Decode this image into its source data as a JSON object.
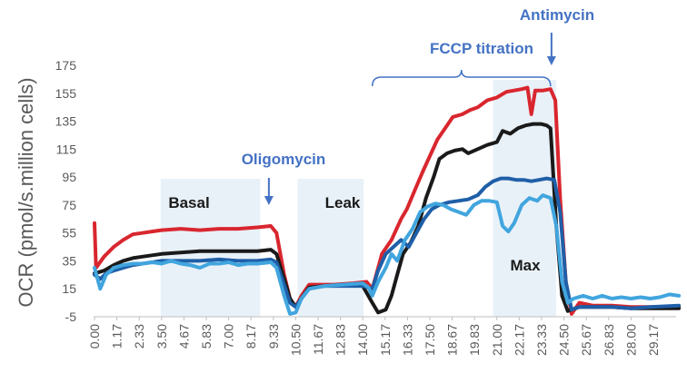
{
  "chart_data": {
    "type": "line",
    "title": "",
    "ylabel": "OCR (pmol/s.million cells)",
    "xlabel": "",
    "ylim": [
      -5,
      175
    ],
    "yticks": [
      -5,
      15,
      35,
      55,
      75,
      95,
      115,
      135,
      155,
      175
    ],
    "xlim": [
      0,
      30.5
    ],
    "xticks": [
      "0.00",
      "1.17",
      "2.33",
      "3.50",
      "4.67",
      "5.83",
      "7.00",
      "8.17",
      "9.33",
      "10.50",
      "11.67",
      "12.83",
      "14.00",
      "15.17",
      "16.33",
      "17.50",
      "18.67",
      "19.83",
      "21.00",
      "22.17",
      "23.33",
      "24.50",
      "25.67",
      "26.83",
      "28.00",
      "29.17"
    ],
    "grid": false,
    "legend": "none",
    "shaded_regions": [
      {
        "label": "Basal",
        "x0": 3.45,
        "x1": 8.65
      },
      {
        "label": "Leak",
        "x0": 10.6,
        "x1": 14.05
      },
      {
        "label": "Max",
        "x0": 20.8,
        "x1": 24.1
      }
    ],
    "annotations": [
      {
        "text": "Oligomycin",
        "x": 9.1,
        "arrow": true
      },
      {
        "text": "FCCP titration",
        "x0": 14.5,
        "x1": 23.8,
        "bracket": true
      },
      {
        "text": "Antimycin",
        "x": 23.85,
        "arrow": true
      }
    ],
    "series": [
      {
        "color": "#d9262e",
        "points": [
          [
            0,
            62
          ],
          [
            0.08,
            30
          ],
          [
            0.5,
            38
          ],
          [
            1,
            45
          ],
          [
            1.5,
            50
          ],
          [
            2,
            54
          ],
          [
            2.5,
            55
          ],
          [
            3,
            56
          ],
          [
            3.5,
            57
          ],
          [
            4.5,
            58
          ],
          [
            5.5,
            57
          ],
          [
            6.5,
            58
          ],
          [
            7.5,
            58
          ],
          [
            8.5,
            59
          ],
          [
            9.2,
            60
          ],
          [
            9.5,
            55
          ],
          [
            9.9,
            25
          ],
          [
            10.2,
            8
          ],
          [
            10.5,
            2
          ],
          [
            10.8,
            10
          ],
          [
            11.2,
            18
          ],
          [
            11.67,
            18
          ],
          [
            12.5,
            18
          ],
          [
            13.5,
            19
          ],
          [
            14.2,
            20
          ],
          [
            14.5,
            15
          ],
          [
            14.7,
            25
          ],
          [
            15,
            40
          ],
          [
            15.5,
            50
          ],
          [
            16,
            65
          ],
          [
            16.3,
            72
          ],
          [
            16.7,
            85
          ],
          [
            17.1,
            98
          ],
          [
            17.5,
            110
          ],
          [
            17.9,
            122
          ],
          [
            18.3,
            130
          ],
          [
            18.7,
            138
          ],
          [
            19.2,
            140
          ],
          [
            19.6,
            143
          ],
          [
            20,
            145
          ],
          [
            20.5,
            150
          ],
          [
            21,
            152
          ],
          [
            21.5,
            156
          ],
          [
            21.9,
            157
          ],
          [
            22.3,
            158
          ],
          [
            22.6,
            159
          ],
          [
            22.8,
            140
          ],
          [
            23,
            157
          ],
          [
            23.4,
            157
          ],
          [
            23.8,
            158
          ],
          [
            24.05,
            150
          ],
          [
            24.3,
            80
          ],
          [
            24.6,
            20
          ],
          [
            24.9,
            -3
          ],
          [
            25.3,
            5
          ],
          [
            26,
            3
          ],
          [
            27,
            3
          ],
          [
            28,
            2
          ],
          [
            29,
            2
          ],
          [
            29.5,
            2
          ],
          [
            30.5,
            2
          ]
        ]
      },
      {
        "color": "#1a1a1a",
        "points": [
          [
            0,
            26
          ],
          [
            0.5,
            28
          ],
          [
            1,
            32
          ],
          [
            1.5,
            35
          ],
          [
            2,
            37
          ],
          [
            2.5,
            38
          ],
          [
            3,
            39
          ],
          [
            3.5,
            40
          ],
          [
            4.5,
            41
          ],
          [
            5.5,
            42
          ],
          [
            6.5,
            42
          ],
          [
            7.5,
            42
          ],
          [
            8.5,
            42
          ],
          [
            9.2,
            43
          ],
          [
            9.5,
            40
          ],
          [
            9.9,
            22
          ],
          [
            10.2,
            8
          ],
          [
            10.5,
            2
          ],
          [
            10.8,
            8
          ],
          [
            11.2,
            16
          ],
          [
            12,
            17
          ],
          [
            13,
            18
          ],
          [
            14,
            17
          ],
          [
            14.5,
            5
          ],
          [
            14.8,
            -2
          ],
          [
            15.2,
            0
          ],
          [
            15.5,
            10
          ],
          [
            15.8,
            25
          ],
          [
            16.1,
            40
          ],
          [
            16.5,
            48
          ],
          [
            16.9,
            60
          ],
          [
            17.3,
            80
          ],
          [
            17.7,
            95
          ],
          [
            18,
            108
          ],
          [
            18.4,
            112
          ],
          [
            18.8,
            114
          ],
          [
            19.2,
            115
          ],
          [
            19.5,
            112
          ],
          [
            20,
            115
          ],
          [
            20.5,
            118
          ],
          [
            21,
            120
          ],
          [
            21.3,
            128
          ],
          [
            21.7,
            126
          ],
          [
            22.1,
            130
          ],
          [
            22.5,
            132
          ],
          [
            22.9,
            133
          ],
          [
            23.3,
            133
          ],
          [
            23.6,
            132
          ],
          [
            23.8,
            130
          ],
          [
            24.1,
            60
          ],
          [
            24.4,
            10
          ],
          [
            24.7,
            -1
          ],
          [
            25.3,
            2
          ],
          [
            26,
            2
          ],
          [
            27,
            2
          ],
          [
            28,
            1
          ],
          [
            29,
            1
          ],
          [
            30.5,
            1
          ]
        ]
      },
      {
        "color": "#1f5fa8",
        "points": [
          [
            0,
            25
          ],
          [
            0.3,
            22
          ],
          [
            0.6,
            26
          ],
          [
            1,
            28
          ],
          [
            1.5,
            30
          ],
          [
            2,
            32
          ],
          [
            2.5,
            33
          ],
          [
            3,
            34
          ],
          [
            3.5,
            35
          ],
          [
            4.5,
            35
          ],
          [
            5.5,
            35
          ],
          [
            6.5,
            36
          ],
          [
            7.5,
            35
          ],
          [
            8.5,
            35
          ],
          [
            9.2,
            36
          ],
          [
            9.5,
            34
          ],
          [
            9.9,
            18
          ],
          [
            10.2,
            5
          ],
          [
            10.5,
            2
          ],
          [
            10.8,
            8
          ],
          [
            11.2,
            15
          ],
          [
            12,
            17
          ],
          [
            13,
            17
          ],
          [
            14,
            17
          ],
          [
            14.5,
            15
          ],
          [
            14.8,
            28
          ],
          [
            15.2,
            40
          ],
          [
            15.6,
            45
          ],
          [
            16,
            50
          ],
          [
            16.4,
            45
          ],
          [
            16.8,
            55
          ],
          [
            17.2,
            65
          ],
          [
            17.6,
            72
          ],
          [
            18,
            75
          ],
          [
            18.5,
            77
          ],
          [
            19,
            78
          ],
          [
            19.5,
            79
          ],
          [
            20,
            82
          ],
          [
            20.4,
            88
          ],
          [
            20.8,
            92
          ],
          [
            21.2,
            94
          ],
          [
            21.6,
            94
          ],
          [
            22,
            93
          ],
          [
            22.4,
            93
          ],
          [
            22.8,
            92
          ],
          [
            23.2,
            93
          ],
          [
            23.6,
            94
          ],
          [
            24,
            93
          ],
          [
            24.3,
            70
          ],
          [
            24.6,
            20
          ],
          [
            24.9,
            0
          ],
          [
            25.3,
            2
          ],
          [
            26,
            2
          ],
          [
            27,
            2
          ],
          [
            28,
            1
          ],
          [
            29,
            2
          ],
          [
            30.5,
            3
          ]
        ]
      },
      {
        "color": "#41a5de",
        "points": [
          [
            0,
            30
          ],
          [
            0.3,
            15
          ],
          [
            0.6,
            25
          ],
          [
            1,
            30
          ],
          [
            1.5,
            32
          ],
          [
            2,
            33
          ],
          [
            2.5,
            33
          ],
          [
            3,
            34
          ],
          [
            3.5,
            33
          ],
          [
            4,
            35
          ],
          [
            4.5,
            33
          ],
          [
            5,
            32
          ],
          [
            5.5,
            30
          ],
          [
            6,
            33
          ],
          [
            6.5,
            33
          ],
          [
            7,
            34
          ],
          [
            7.5,
            32
          ],
          [
            8,
            33
          ],
          [
            8.5,
            33
          ],
          [
            9.2,
            34
          ],
          [
            9.5,
            30
          ],
          [
            9.9,
            10
          ],
          [
            10.2,
            -3
          ],
          [
            10.5,
            -2
          ],
          [
            10.8,
            8
          ],
          [
            11.2,
            15
          ],
          [
            12,
            17
          ],
          [
            13,
            18
          ],
          [
            14,
            19
          ],
          [
            14.3,
            16
          ],
          [
            14.5,
            10
          ],
          [
            14.8,
            20
          ],
          [
            15.2,
            30
          ],
          [
            15.5,
            40
          ],
          [
            15.8,
            35
          ],
          [
            16.2,
            50
          ],
          [
            16.6,
            58
          ],
          [
            17,
            70
          ],
          [
            17.4,
            74
          ],
          [
            17.8,
            76
          ],
          [
            18.2,
            75
          ],
          [
            18.6,
            72
          ],
          [
            19,
            70
          ],
          [
            19.4,
            68
          ],
          [
            19.8,
            75
          ],
          [
            20.2,
            78
          ],
          [
            20.6,
            78
          ],
          [
            21,
            77
          ],
          [
            21.3,
            60
          ],
          [
            21.6,
            56
          ],
          [
            21.9,
            62
          ],
          [
            22.3,
            75
          ],
          [
            22.7,
            80
          ],
          [
            23.1,
            78
          ],
          [
            23.4,
            82
          ],
          [
            23.8,
            80
          ],
          [
            24.1,
            60
          ],
          [
            24.4,
            20
          ],
          [
            24.7,
            5
          ],
          [
            25,
            8
          ],
          [
            25.5,
            10
          ],
          [
            26,
            8
          ],
          [
            26.5,
            10
          ],
          [
            27,
            8
          ],
          [
            27.5,
            9
          ],
          [
            28,
            8
          ],
          [
            28.5,
            9
          ],
          [
            29,
            8
          ],
          [
            29.5,
            9
          ],
          [
            30,
            11
          ],
          [
            30.5,
            10
          ]
        ]
      }
    ]
  }
}
